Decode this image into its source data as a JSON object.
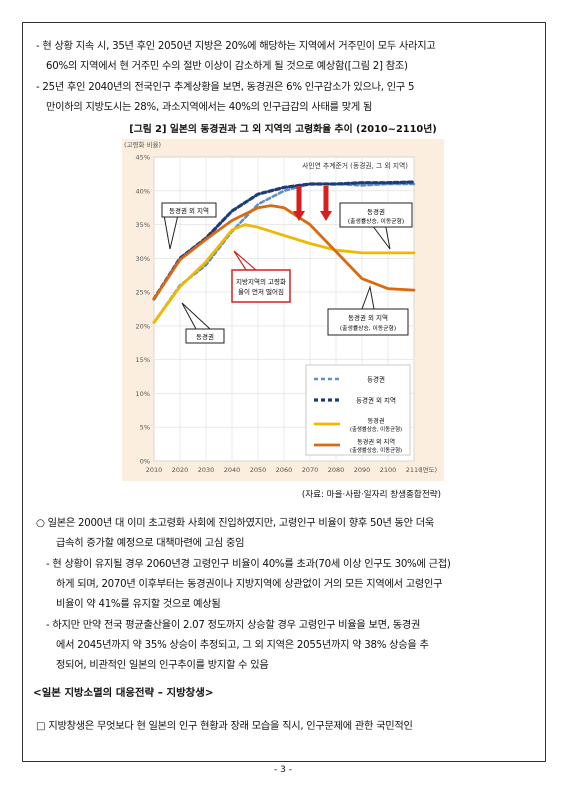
{
  "top_bullets": [
    "- 현 상황 지속 시, 35년 후인 2050년 지방은 20%에 해당하는 지역에서 거주민이 모두 사라지고",
    "60%의 지역에서 현 거주민 수의 절반 이상이 감소하게 될 것으로 예상함([그림 2] 참조)",
    "- 25년 후인 2040년의 전국인구 추계상황을 보면, 동경권은 6% 인구감소가 있으나, 인구 5",
    "만이하의 지방도시는 28%, 과소지역에서는 40%의 인구급감의 사태를 맞게 됨"
  ],
  "figure_caption": "[그림 2] 일본의 동경권과 그 외 지역의 고령화율 추이 (2010~2110년)",
  "figure_source": "(자료: 마을·사람·일자리 창생종합전략)",
  "chart_data": {
    "type": "line",
    "ylabel": "(고령화 비율)",
    "xunit": "(연도)",
    "x": [
      2010,
      2020,
      2030,
      2040,
      2050,
      2060,
      2070,
      2080,
      2090,
      2100,
      2110
    ],
    "y_ticks": [
      "0%",
      "5%",
      "10%",
      "15%",
      "20%",
      "25%",
      "30%",
      "35%",
      "40%",
      "45%"
    ],
    "ylim": [
      0,
      45
    ],
    "grid": true,
    "top_annotation": "사인연 추계준거 (동경권, 그 외 지역)",
    "series": [
      {
        "name": "동경권",
        "style": "dashed",
        "color": "#5f8fc8",
        "x": [
          2010,
          2020,
          2030,
          2040,
          2050,
          2060,
          2070,
          2080,
          2090,
          2100,
          2110
        ],
        "values": [
          20.5,
          26,
          29,
          34,
          38,
          40,
          41,
          41,
          40.8,
          41,
          41
        ]
      },
      {
        "name": "동경권 외 지역",
        "style": "dashed",
        "color": "#1f3c78",
        "x": [
          2010,
          2020,
          2030,
          2040,
          2050,
          2060,
          2070,
          2080,
          2090,
          2100,
          2110
        ],
        "values": [
          24,
          30,
          33,
          37,
          39.5,
          40.5,
          41,
          41,
          41.2,
          41.2,
          41.3
        ]
      },
      {
        "name": "동경권",
        "sub": "(출생률상승, 이동균형)",
        "style": "solid",
        "color": "#f0b800",
        "x": [
          2010,
          2020,
          2030,
          2040,
          2045,
          2050,
          2060,
          2070,
          2080,
          2090,
          2100,
          2110
        ],
        "values": [
          20.5,
          25.8,
          29.5,
          34.2,
          35,
          34.6,
          33.4,
          32.2,
          31.2,
          30.8,
          30.8,
          30.8
        ]
      },
      {
        "name": "동경권 외 지역",
        "sub": "(출생률상승, 이동균형)",
        "style": "solid",
        "color": "#d96a12",
        "x": [
          2010,
          2020,
          2030,
          2040,
          2050,
          2055,
          2060,
          2070,
          2080,
          2090,
          2100,
          2110
        ],
        "values": [
          24,
          29.8,
          32.8,
          35.6,
          37.5,
          37.8,
          37.5,
          35,
          31,
          27,
          25.5,
          25.3
        ]
      }
    ],
    "callouts": {
      "outer_region": "동경권 외 지역",
      "tokyo": "동경권",
      "tokyo_right": [
        "동경권",
        "(출생률상승, 이동균형)"
      ],
      "outer_right": [
        "동경권 외 지역",
        "(출생률상승, 이동균형)"
      ],
      "center_note": [
        "지방지역의 고령화",
        "율이 먼저 떨어짐"
      ]
    }
  },
  "middle_bullets": [
    "○ 일본은 2000년 대 이미 초고령화 사회에 진입하였지만, 고령인구 비율이 향후 50년 동안 더욱",
    "급속히 증가할 예정으로 대책마련에 고심 중임",
    "- 현 상황이 유지될 경우 2060년경 고령인구 비율이 40%를 초과(70세 이상 인구도 30%에 근접)",
    "하게 되며, 2070년 이후부터는 동경권이나 지방지역에 상관없이 거의 모든 지역에서 고령인구",
    "비율이 약 41%를 유지할 것으로 예상됨",
    "- 하지만 만약 전국 평균출산율이 2.07 정도까지 상승할 경우 고령인구 비율을 보면, 동경권",
    "에서 2045년까지 약 35% 상승이 추정되고, 그 외 지역은 2055년까지 약 38% 상승을 추",
    "정되어, 비관적인 일본의 인구추이를 방지할 수 있음"
  ],
  "section_heading": "<일본 지방소멸의 대응전략 – 지방창생>",
  "last_paragraph": "□ 지방창생은 무엇보다 현 일본의 인구 현황과 장래 모습을 직시, 인구문제에 관한 국민적인",
  "page_number": "- 3 -"
}
